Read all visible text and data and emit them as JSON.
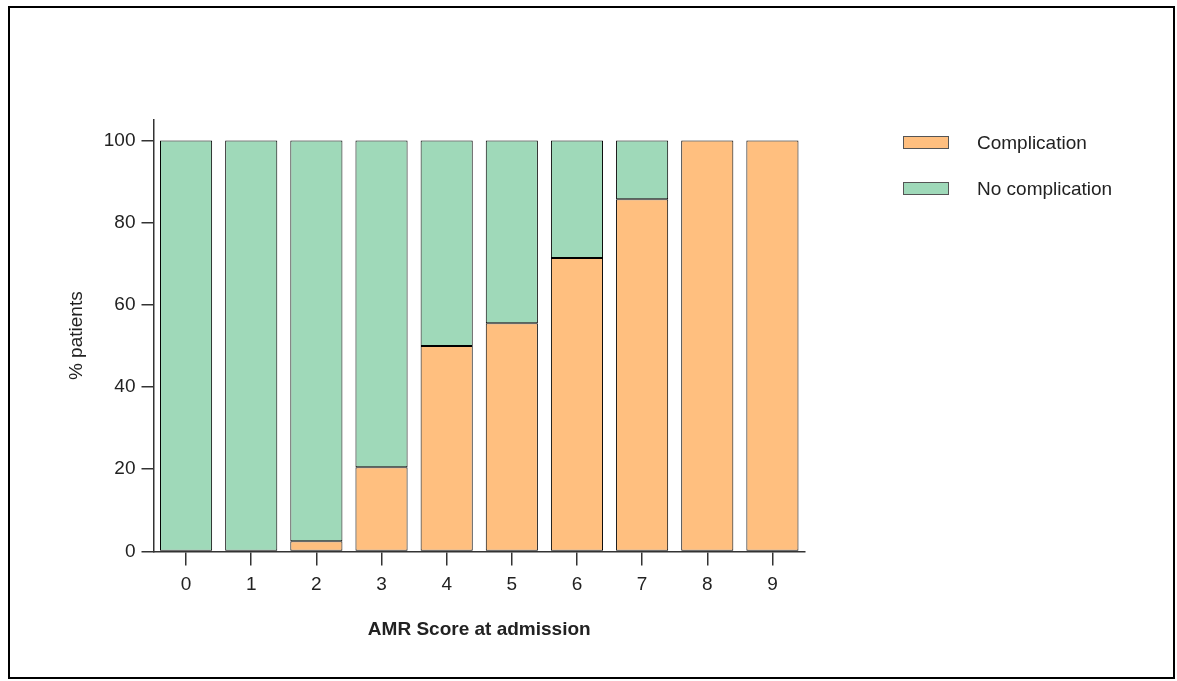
{
  "chart_data": {
    "type": "bar",
    "stacked": true,
    "xlabel": "AMR Score at admission",
    "ylabel": "% patients",
    "categories": [
      "0",
      "1",
      "2",
      "3",
      "4",
      "5",
      "6",
      "7",
      "8",
      "9"
    ],
    "series": [
      {
        "name": "Complication",
        "color": "#ffbf7f",
        "values": [
          0,
          0,
          2.5,
          20.5,
          50,
          55.5,
          71.4,
          85.7,
          100,
          100
        ]
      },
      {
        "name": "No complication",
        "color": "#9fd9b9",
        "values": [
          100,
          100,
          97.5,
          79.5,
          50,
          44.5,
          28.6,
          14.3,
          0,
          0
        ]
      }
    ],
    "ylim": [
      0,
      105
    ],
    "yticks": [
      0,
      20,
      40,
      60,
      80,
      100
    ],
    "grid": false,
    "legend": "top right"
  }
}
